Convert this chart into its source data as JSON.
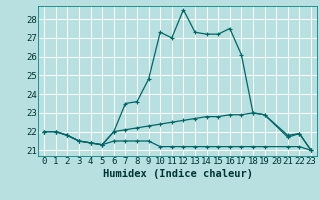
{
  "xlabel": "Humidex (Indice chaleur)",
  "xlim": [
    -0.5,
    23.5
  ],
  "ylim": [
    20.7,
    28.7
  ],
  "yticks": [
    21,
    22,
    23,
    24,
    25,
    26,
    27,
    28
  ],
  "xticks": [
    0,
    1,
    2,
    3,
    4,
    5,
    6,
    7,
    8,
    9,
    10,
    11,
    12,
    13,
    14,
    15,
    16,
    17,
    18,
    19,
    20,
    21,
    22,
    23
  ],
  "bg_color": "#b8e0e0",
  "grid_color": "#d8f0f0",
  "line_color": "#006666",
  "line1_x": [
    0,
    1,
    2,
    3,
    4,
    5,
    6,
    7,
    8,
    9,
    10,
    11,
    12,
    13,
    14,
    15,
    16,
    17,
    18,
    19,
    21,
    22,
    23
  ],
  "line1_y": [
    22.0,
    22.0,
    21.8,
    21.5,
    21.4,
    21.3,
    22.0,
    23.5,
    23.6,
    24.8,
    27.3,
    27.0,
    28.5,
    27.3,
    27.2,
    27.2,
    27.5,
    26.1,
    23.0,
    22.9,
    21.8,
    21.9,
    21.0
  ],
  "line2_x": [
    0,
    1,
    2,
    3,
    4,
    5,
    6,
    7,
    8,
    9,
    10,
    11,
    12,
    13,
    14,
    15,
    16,
    17,
    18,
    19,
    21,
    22,
    23
  ],
  "line2_y": [
    22.0,
    22.0,
    21.8,
    21.5,
    21.4,
    21.3,
    22.0,
    22.1,
    22.2,
    22.3,
    22.4,
    22.5,
    22.6,
    22.7,
    22.8,
    22.8,
    22.9,
    22.9,
    23.0,
    22.9,
    21.7,
    21.9,
    21.0
  ],
  "line3_x": [
    0,
    1,
    2,
    3,
    4,
    5,
    6,
    7,
    8,
    9,
    10,
    11,
    12,
    13,
    14,
    15,
    16,
    17,
    18,
    19,
    21,
    22,
    23
  ],
  "line3_y": [
    22.0,
    22.0,
    21.8,
    21.5,
    21.4,
    21.3,
    21.5,
    21.5,
    21.5,
    21.5,
    21.2,
    21.2,
    21.2,
    21.2,
    21.2,
    21.2,
    21.2,
    21.2,
    21.2,
    21.2,
    21.2,
    21.2,
    21.0
  ],
  "markersize": 3,
  "linewidth": 0.9,
  "tick_fontsize": 6.5,
  "xlabel_fontsize": 7.5
}
